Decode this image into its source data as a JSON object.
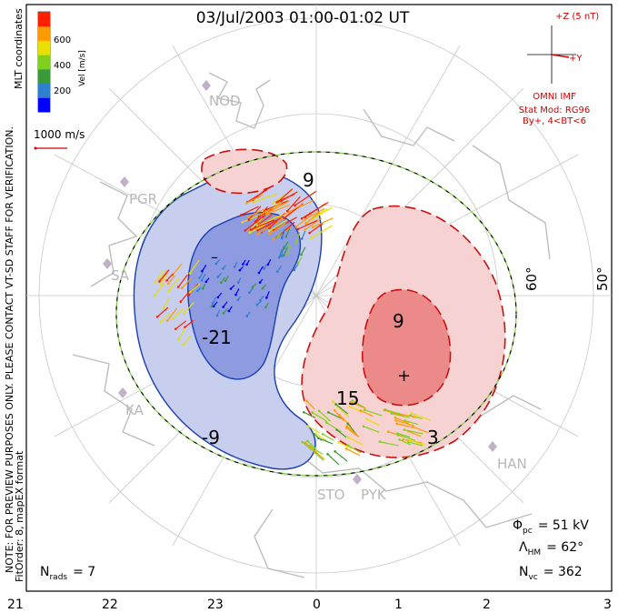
{
  "chart_data": {
    "type": "polar-convection-map",
    "title": "03/Jul/2003 01:00-01:02 UT",
    "colorbar": {
      "label": "Vel [m/s]",
      "ticks": [
        "600",
        "400",
        "200"
      ],
      "colors": [
        "#0000ff",
        "#2f7fd0",
        "#3a9a3a",
        "#80d020",
        "#e8e000",
        "#ff9a00",
        "#ff2000"
      ]
    },
    "reference_vector": "1000 m/s",
    "coordinates_label": "MLT coordinates",
    "imf": {
      "scale": "+Z (5 nT)",
      "y_label": "+Y",
      "source": "OMNI IMF",
      "model": "Stat Mod: RG96",
      "condition": "By+, 4<BT<6"
    },
    "latitude_labels": [
      "60°",
      "50°"
    ],
    "station_labels": [
      "NOD",
      "PGR",
      "SA",
      "KA",
      "STO",
      "PYK",
      "HAN"
    ],
    "contour_labels": [
      "9",
      "-",
      "-21",
      "-9",
      "9",
      "15",
      "3"
    ],
    "stats": {
      "phi_pc": "= 51 kV",
      "lambda_hm": "= 62°",
      "n_vc": "= 362",
      "n_rads": "= 7"
    },
    "side_note": "NOTE: FOR PREVIEW PURPOSES ONLY. PLEASE CONTACT VT-SD STAFF FOR VERIFICATION.",
    "fit_note": "FitOrder: 8, mapEX format",
    "x_ticks": [
      "21",
      "22",
      "23",
      "0",
      "1",
      "2",
      "3"
    ],
    "colors": {
      "negative": "#1a3fb0",
      "positive": "#cc1010",
      "boundary_a": "#7fd040",
      "boundary_b": "#000000",
      "annotation": "#d40000"
    }
  }
}
